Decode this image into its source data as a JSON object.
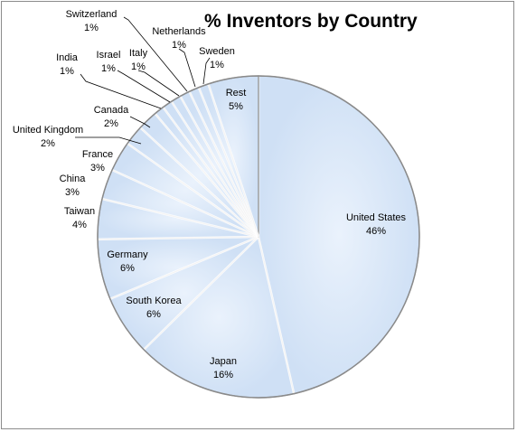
{
  "chart_data": {
    "type": "pie",
    "title": "% Inventors by Country",
    "slices": [
      {
        "label": "United States",
        "value": 46,
        "display": "46%"
      },
      {
        "label": "Japan",
        "value": 16,
        "display": "16%"
      },
      {
        "label": "South Korea",
        "value": 6,
        "display": "6%"
      },
      {
        "label": "Germany",
        "value": 6,
        "display": "6%"
      },
      {
        "label": "Taiwan",
        "value": 4,
        "display": "4%"
      },
      {
        "label": "China",
        "value": 3,
        "display": "3%"
      },
      {
        "label": "France",
        "value": 3,
        "display": "3%"
      },
      {
        "label": "United Kingdom",
        "value": 2,
        "display": "2%"
      },
      {
        "label": "Canada",
        "value": 2,
        "display": "2%"
      },
      {
        "label": "India",
        "value": 1,
        "display": "1%"
      },
      {
        "label": "Israel",
        "value": 1,
        "display": "1%"
      },
      {
        "label": "Italy",
        "value": 1,
        "display": "1%"
      },
      {
        "label": "Switzerland",
        "value": 1,
        "display": "1%"
      },
      {
        "label": "Netherlands",
        "value": 1,
        "display": "1%"
      },
      {
        "label": "Sweden",
        "value": 1,
        "display": "1%"
      },
      {
        "label": "Rest",
        "value": 5,
        "display": "5%"
      }
    ],
    "slice_color": "#d7e5f7",
    "edge_color": "#8a8a8a",
    "legend": "none"
  }
}
